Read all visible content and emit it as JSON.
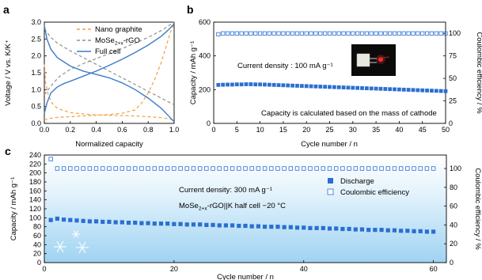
{
  "chart_data": [
    {
      "panel": "a",
      "type": "line",
      "xlabel": "Normalized capacity",
      "ylabel": "Voltage / V vs. K/K⁺",
      "xlim": [
        0,
        1.0
      ],
      "ylim": [
        0,
        3.0
      ],
      "xticks": [
        "0.0",
        "0.2",
        "0.4",
        "0.6",
        "0.8",
        "1.0"
      ],
      "yticks": [
        "0.0",
        "0.5",
        "1.0",
        "1.5",
        "2.0",
        "2.5",
        "3.0"
      ],
      "legend": {
        "placement": "top-right",
        "entries": [
          "Nano graphite",
          "MoSe2+x-rGO",
          "Full cell"
        ]
      },
      "series": [
        {
          "name": "Nano graphite",
          "color": "#f0a040",
          "style": "dashed",
          "role": "discharge",
          "points": [
            [
              0,
              1.75
            ],
            [
              0.01,
              1.2
            ],
            [
              0.03,
              0.85
            ],
            [
              0.06,
              0.6
            ],
            [
              0.1,
              0.45
            ],
            [
              0.15,
              0.38
            ],
            [
              0.2,
              0.32
            ],
            [
              0.3,
              0.28
            ],
            [
              0.4,
              0.25
            ],
            [
              0.5,
              0.24
            ],
            [
              0.6,
              0.23
            ],
            [
              0.7,
              0.22
            ],
            [
              0.8,
              0.2
            ],
            [
              0.9,
              0.17
            ],
            [
              0.95,
              0.14
            ],
            [
              1.0,
              0.1
            ]
          ]
        },
        {
          "name": "Nano graphite",
          "color": "#f0a040",
          "style": "dashed",
          "role": "charge",
          "points": [
            [
              0,
              0.1
            ],
            [
              0.05,
              0.15
            ],
            [
              0.1,
              0.18
            ],
            [
              0.2,
              0.2
            ],
            [
              0.3,
              0.22
            ],
            [
              0.4,
              0.24
            ],
            [
              0.5,
              0.26
            ],
            [
              0.6,
              0.3
            ],
            [
              0.7,
              0.4
            ],
            [
              0.75,
              0.6
            ],
            [
              0.8,
              0.9
            ],
            [
              0.85,
              1.3
            ],
            [
              0.9,
              1.8
            ],
            [
              0.94,
              2.3
            ],
            [
              0.97,
              2.7
            ],
            [
              1.0,
              2.95
            ]
          ]
        },
        {
          "name": "MoSe2+x-rGO",
          "color": "#909090",
          "style": "dashed",
          "role": "charge",
          "points": [
            [
              0,
              0.85
            ],
            [
              0.03,
              1.0
            ],
            [
              0.07,
              1.2
            ],
            [
              0.12,
              1.4
            ],
            [
              0.2,
              1.6
            ],
            [
              0.3,
              1.77
            ],
            [
              0.4,
              1.92
            ],
            [
              0.5,
              2.07
            ],
            [
              0.6,
              2.22
            ],
            [
              0.7,
              2.38
            ],
            [
              0.8,
              2.55
            ],
            [
              0.9,
              2.75
            ],
            [
              1.0,
              3.0
            ]
          ]
        },
        {
          "name": "MoSe2+x-rGO",
          "color": "#909090",
          "style": "dashed",
          "role": "discharge",
          "points": [
            [
              0,
              2.8
            ],
            [
              0.05,
              2.55
            ],
            [
              0.1,
              2.38
            ],
            [
              0.2,
              2.15
            ],
            [
              0.3,
              1.95
            ],
            [
              0.4,
              1.75
            ],
            [
              0.5,
              1.55
            ],
            [
              0.6,
              1.35
            ],
            [
              0.7,
              1.15
            ],
            [
              0.8,
              0.95
            ],
            [
              0.9,
              0.75
            ],
            [
              1.0,
              0.55
            ]
          ]
        },
        {
          "name": "Full cell",
          "color": "#3d7cc9",
          "style": "solid",
          "role": "charge",
          "points": [
            [
              0,
              0.3
            ],
            [
              0.02,
              0.6
            ],
            [
              0.05,
              0.9
            ],
            [
              0.1,
              1.08
            ],
            [
              0.15,
              1.18
            ],
            [
              0.2,
              1.25
            ],
            [
              0.3,
              1.4
            ],
            [
              0.4,
              1.55
            ],
            [
              0.5,
              1.72
            ],
            [
              0.6,
              1.9
            ],
            [
              0.7,
              2.1
            ],
            [
              0.8,
              2.32
            ],
            [
              0.9,
              2.58
            ],
            [
              0.95,
              2.75
            ],
            [
              1.0,
              2.95
            ]
          ]
        },
        {
          "name": "Full cell",
          "color": "#3d7cc9",
          "style": "solid",
          "role": "discharge",
          "points": [
            [
              0,
              2.9
            ],
            [
              0.02,
              2.5
            ],
            [
              0.05,
              2.2
            ],
            [
              0.1,
              1.95
            ],
            [
              0.2,
              1.7
            ],
            [
              0.3,
              1.55
            ],
            [
              0.4,
              1.45
            ],
            [
              0.5,
              1.35
            ],
            [
              0.6,
              1.2
            ],
            [
              0.7,
              1.0
            ],
            [
              0.8,
              0.75
            ],
            [
              0.9,
              0.45
            ],
            [
              0.95,
              0.25
            ],
            [
              1.0,
              0.05
            ]
          ]
        }
      ]
    },
    {
      "panel": "b",
      "type": "scatter",
      "xlabel": "Cycle number / n",
      "ylabel": "Capacity / mAh g⁻¹",
      "y2label": "Coulombic efficiency / %",
      "xlim": [
        0,
        50
      ],
      "ylim": [
        0,
        600
      ],
      "y2lim": [
        0,
        112.5
      ],
      "xticks": [
        0,
        5,
        10,
        15,
        20,
        25,
        30,
        35,
        40,
        45,
        50
      ],
      "yticks": [
        0,
        200,
        400,
        600
      ],
      "y2ticks": [
        0,
        25,
        50,
        75,
        100
      ],
      "annotations": [
        "Current density : 100 mA g⁻¹",
        "Capacity is calculated based on the mass of cathode"
      ],
      "capacity": {
        "color": "#2a6fd1",
        "x": [
          1,
          2,
          3,
          4,
          5,
          6,
          7,
          8,
          9,
          10,
          11,
          12,
          13,
          14,
          15,
          16,
          17,
          18,
          19,
          20,
          21,
          22,
          23,
          24,
          25,
          26,
          27,
          28,
          29,
          30,
          31,
          32,
          33,
          34,
          35,
          36,
          37,
          38,
          39,
          40,
          41,
          42,
          43,
          44,
          45,
          46,
          47,
          48,
          49,
          50
        ],
        "values": [
          228,
          229,
          230,
          230,
          231,
          231,
          232,
          232,
          231,
          231,
          230,
          229,
          228,
          227,
          226,
          225,
          224,
          223,
          222,
          221,
          220,
          219,
          218,
          217,
          216,
          215,
          214,
          213,
          212,
          211,
          210,
          209,
          208,
          207,
          206,
          205,
          204,
          203,
          202,
          201,
          200,
          199,
          198,
          197,
          196,
          195,
          194,
          193,
          192,
          191
        ]
      },
      "coulombic_efficiency": {
        "color": "#2a6fd1",
        "x_from": 1,
        "x_to": 50,
        "values_start": 99,
        "values": 100
      }
    },
    {
      "panel": "c",
      "type": "scatter",
      "xlabel": "Cycle number / n",
      "ylabel": "Capacity / mAh g⁻¹",
      "y2label": "Coulombic efficiency / %",
      "xlim": [
        0,
        62
      ],
      "ylim": [
        0,
        240
      ],
      "y2lim": [
        0,
        114.3
      ],
      "xticks": [
        0,
        20,
        40,
        60
      ],
      "yticks": [
        0,
        20,
        40,
        60,
        80,
        100,
        120,
        140,
        160,
        180,
        200,
        220,
        240
      ],
      "y2ticks": [
        0,
        20,
        40,
        60,
        80,
        100
      ],
      "legend": {
        "placement": "center-right",
        "entries": [
          "Discharge",
          "Coulombic efficiency"
        ]
      },
      "annotations": [
        "Current density: 300 mA g⁻¹",
        "MoSe2+x-rGO||K  half cell  −20 °C"
      ],
      "discharge": {
        "color": "#2a6fd1",
        "x_from": 1,
        "x_to": 60,
        "values": [
          95,
          98,
          96,
          95,
          94,
          93,
          92,
          92,
          91,
          91,
          90,
          90,
          89,
          89,
          88,
          88,
          87,
          87,
          87,
          86,
          86,
          85,
          85,
          85,
          84,
          84,
          83,
          83,
          83,
          82,
          82,
          81,
          81,
          80,
          80,
          80,
          79,
          79,
          78,
          78,
          77,
          77,
          77,
          76,
          76,
          75,
          75,
          74,
          74,
          73,
          73,
          73,
          72,
          72,
          71,
          71,
          70,
          70,
          69,
          69
        ]
      },
      "coulombic_efficiency": {
        "color": "#2a6fd1",
        "x_from": 1,
        "x_to": 60,
        "first_value": 110,
        "value": 100
      }
    }
  ],
  "text": {
    "panel_a_letter": "a",
    "panel_b_letter": "b",
    "panel_c_letter": "c"
  }
}
